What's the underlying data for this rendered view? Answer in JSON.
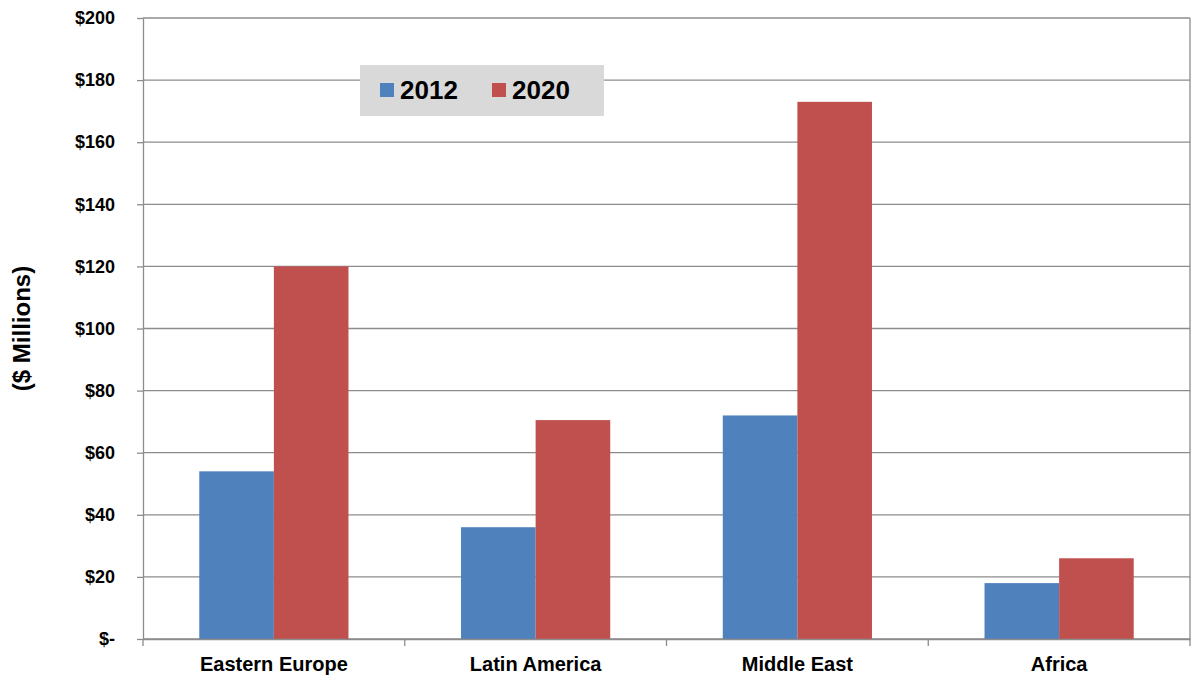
{
  "chart_data": {
    "type": "bar",
    "categories": [
      "Eastern Europe",
      "Latin America",
      "Middle East",
      "Africa"
    ],
    "series": [
      {
        "name": "2012",
        "color": "#4f81bd",
        "values": [
          54,
          36,
          72,
          18
        ]
      },
      {
        "name": "2020",
        "color": "#c0504d",
        "values": [
          120,
          70.5,
          173,
          26
        ]
      }
    ],
    "y_label": "($ Millions)",
    "ylim": [
      0,
      200
    ],
    "yticks": [
      {
        "value": 0,
        "label": "$-"
      },
      {
        "value": 20,
        "label": "$20"
      },
      {
        "value": 40,
        "label": "$40"
      },
      {
        "value": 60,
        "label": "$60"
      },
      {
        "value": 80,
        "label": "$80"
      },
      {
        "value": 100,
        "label": "$100"
      },
      {
        "value": 120,
        "label": "$120"
      },
      {
        "value": 140,
        "label": "$140"
      },
      {
        "value": 160,
        "label": "$160"
      },
      {
        "value": 180,
        "label": "$180"
      },
      {
        "value": 200,
        "label": "$200"
      }
    ],
    "grid": true,
    "legend": "top-left"
  }
}
